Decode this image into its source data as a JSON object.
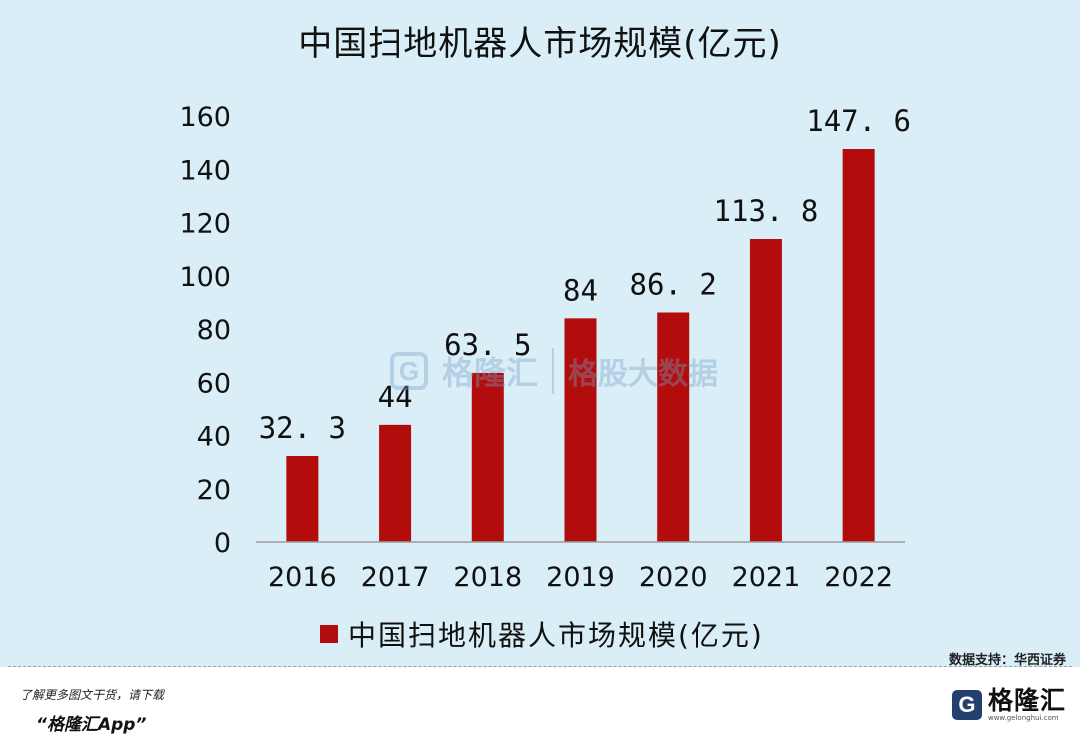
{
  "chart_data": {
    "type": "bar",
    "title": "中国扫地机器人市场规模(亿元)",
    "categories": [
      "2016",
      "2017",
      "2018",
      "2019",
      "2020",
      "2021",
      "2022"
    ],
    "series": [
      {
        "name": "中国扫地机器人市场规模(亿元)",
        "values": [
          32.3,
          44,
          63.5,
          84,
          86.2,
          113.8,
          147.6
        ],
        "value_labels": [
          "32. 3",
          "44",
          "63. 5",
          "84",
          "86. 2",
          "113. 8",
          "147. 6"
        ],
        "color": "#b30c0c"
      }
    ],
    "yticks": [
      "0",
      "20",
      "40",
      "60",
      "80",
      "100",
      "120",
      "140",
      "160"
    ],
    "ylim": [
      0,
      160
    ],
    "xlabel": "",
    "ylabel": "",
    "grid": false,
    "legend_position": "bottom"
  },
  "source": "数据支持：华西证券",
  "watermark": {
    "logo_glyph": "G",
    "brand": "格隆汇",
    "sub": "格股大数据"
  },
  "footer": {
    "promo_line1": "了解更多图文干货，请下载",
    "promo_line2": "“格隆汇App”",
    "brand_logo_glyph": "G",
    "brand_name": "格隆汇",
    "brand_url": "www.gelonghui.com"
  },
  "colors": {
    "background": "#d9eef6",
    "bar": "#b30c0c",
    "footer_background": "#ffffff"
  }
}
